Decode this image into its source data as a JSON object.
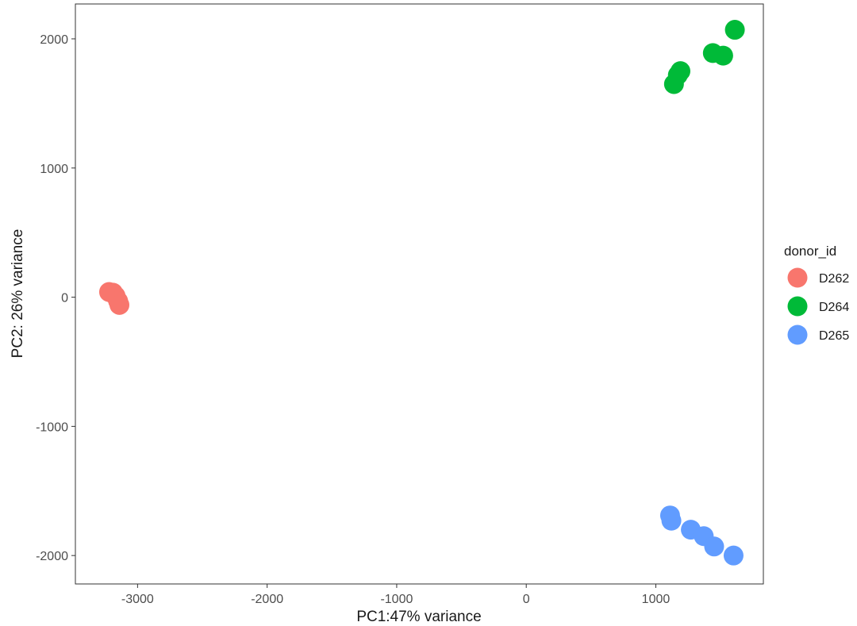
{
  "chart_data": {
    "type": "scatter",
    "title": "",
    "xlabel": "PC1:47% variance",
    "ylabel": "PC2: 26% variance",
    "xlim": [
      -3480,
      1830
    ],
    "ylim": [
      -2220,
      2270
    ],
    "x_ticks": [
      -3000,
      -2000,
      -1000,
      0,
      1000
    ],
    "y_ticks": [
      -2000,
      -1000,
      0,
      1000,
      2000
    ],
    "grid": false,
    "legend": {
      "title": "donor_id",
      "position": "right"
    },
    "series": [
      {
        "name": "D262",
        "color": "#F8766D",
        "points": [
          {
            "x": -3220,
            "y": 40
          },
          {
            "x": -3190,
            "y": 35
          },
          {
            "x": -3170,
            "y": 10
          },
          {
            "x": -3150,
            "y": -30
          },
          {
            "x": -3140,
            "y": -60
          }
        ]
      },
      {
        "name": "D264",
        "color": "#00BA38",
        "points": [
          {
            "x": 1140,
            "y": 1650
          },
          {
            "x": 1170,
            "y": 1720
          },
          {
            "x": 1190,
            "y": 1750
          },
          {
            "x": 1440,
            "y": 1890
          },
          {
            "x": 1520,
            "y": 1870
          },
          {
            "x": 1610,
            "y": 2070
          }
        ]
      },
      {
        "name": "D265",
        "color": "#619CFF",
        "points": [
          {
            "x": 1110,
            "y": -1690
          },
          {
            "x": 1120,
            "y": -1730
          },
          {
            "x": 1270,
            "y": -1800
          },
          {
            "x": 1370,
            "y": -1850
          },
          {
            "x": 1450,
            "y": -1930
          },
          {
            "x": 1600,
            "y": -2000
          }
        ]
      }
    ]
  }
}
